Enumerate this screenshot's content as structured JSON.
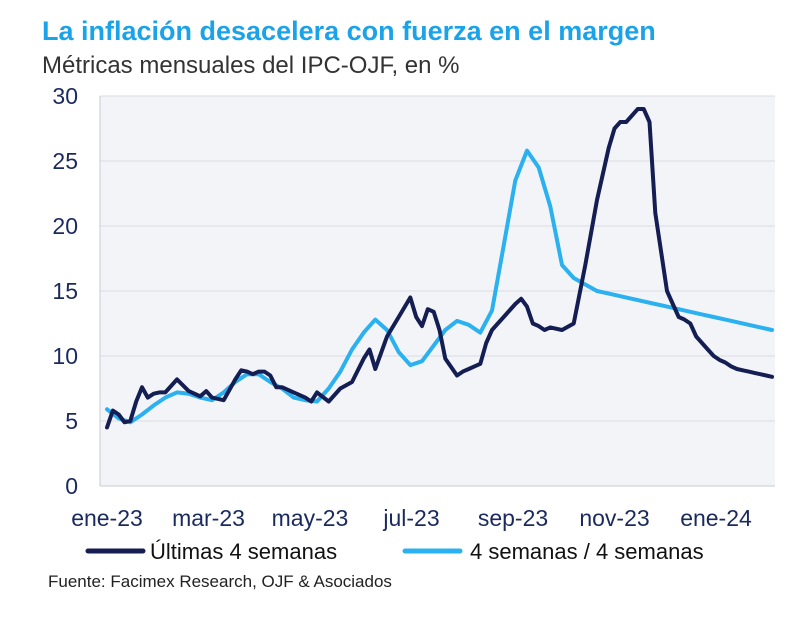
{
  "header": {
    "title": "La inflación desacelera con fuerza en el margen",
    "subtitle": "Métricas mensuales del IPC-OJF, en %"
  },
  "footer": {
    "source": "Fuente: Facimex Research, OJF & Asociados"
  },
  "colors": {
    "series1": "#141e52",
    "series2": "#2bb0f0",
    "title": "#1aa3e8",
    "plot_bg": "#f3f4f8"
  },
  "chart_data": {
    "type": "line",
    "title": "La inflación desacelera con fuerza en el margen",
    "subtitle": "Métricas mensuales del IPC-OJF, en %",
    "xlabel": "",
    "ylabel": "",
    "ylim": [
      0,
      30
    ],
    "xlim": [
      0,
      57
    ],
    "y_ticks": [
      "0",
      "5",
      "10",
      "15",
      "20",
      "25",
      "30"
    ],
    "y_tick_values": [
      0,
      5,
      10,
      15,
      20,
      25,
      30
    ],
    "x_ticks": [
      "ene-23",
      "mar-23",
      "may-23",
      "jul-23",
      "sep-23",
      "nov-23",
      "ene-24"
    ],
    "x_tick_values": [
      0,
      8.7,
      17.4,
      26.1,
      34.8,
      43.5,
      52.2
    ],
    "grid": "horizontal",
    "legend_position": "bottom",
    "x_unit": "weeks since start of ene-23",
    "series": [
      {
        "name": "Últimas 4 semanas",
        "x": [
          0,
          0.5,
          1,
          1.5,
          2,
          2.5,
          3,
          3.5,
          4,
          4.5,
          5,
          6,
          7,
          8,
          8.5,
          9,
          10,
          11,
          11.5,
          12,
          12.5,
          13,
          13.5,
          14,
          14.5,
          15,
          16,
          17,
          17.5,
          18,
          19,
          20,
          21,
          22,
          22.5,
          23,
          24,
          25,
          26,
          26.5,
          27,
          27.5,
          28,
          28.5,
          29,
          30,
          30.5,
          31,
          32,
          32.5,
          33,
          33.5,
          34,
          34.5,
          35,
          35.5,
          36,
          36.5,
          37,
          37.5,
          38,
          39,
          40,
          41,
          42,
          43,
          43.5,
          44,
          44.5,
          45,
          45.5,
          46,
          46.5,
          47,
          48,
          48.5,
          49,
          49.5,
          50,
          50.5,
          51,
          51.5,
          52,
          52.5,
          53,
          53.5,
          54,
          54.5,
          55,
          55.5,
          56,
          56.5,
          57
        ],
        "values": [
          4.5,
          5.8,
          5.5,
          4.9,
          5.0,
          6.5,
          7.6,
          6.8,
          7.1,
          7.2,
          7.2,
          8.2,
          7.3,
          6.9,
          7.3,
          6.8,
          6.6,
          8.2,
          8.9,
          8.8,
          8.6,
          8.8,
          8.8,
          8.5,
          7.6,
          7.6,
          7.2,
          6.8,
          6.5,
          7.2,
          6.5,
          7.5,
          8.0,
          9.8,
          10.5,
          9.0,
          11.5,
          13.0,
          14.5,
          13.0,
          12.3,
          13.6,
          13.4,
          12.0,
          9.8,
          8.5,
          8.8,
          9.0,
          9.4,
          11.0,
          12.0,
          12.5,
          13.0,
          13.5,
          14.0,
          14.4,
          13.8,
          12.5,
          12.3,
          12.0,
          12.2,
          12.0,
          12.5,
          17.0,
          22.0,
          26.0,
          27.5,
          28.0,
          28.0,
          28.5,
          29.0,
          29.0,
          28.0,
          21.0,
          15.0,
          14.0,
          13.0,
          12.8,
          12.5,
          11.5,
          11.0,
          10.5,
          10.0,
          9.7,
          9.5,
          9.2,
          9.0,
          8.9,
          8.8,
          8.7,
          8.6,
          8.5,
          8.4
        ]
      },
      {
        "name": "4 semanas / 4 semanas",
        "x": [
          0,
          1,
          2,
          3,
          4,
          5,
          6,
          7,
          8,
          9,
          10,
          11,
          12,
          13,
          14,
          15,
          16,
          17,
          18,
          19,
          20,
          21,
          22,
          23,
          24,
          25,
          26,
          27,
          28,
          29,
          30,
          31,
          32,
          33,
          34,
          35,
          36,
          37,
          38,
          39,
          40,
          41,
          42,
          43,
          44,
          45,
          46,
          47,
          48,
          49,
          50,
          51,
          52,
          53,
          54,
          55,
          56,
          57
        ],
        "values": [
          5.9,
          5.2,
          4.9,
          5.5,
          6.2,
          6.8,
          7.2,
          7.1,
          6.8,
          6.6,
          7.2,
          8.0,
          8.6,
          8.6,
          8.0,
          7.5,
          6.8,
          6.6,
          6.5,
          7.5,
          8.8,
          10.5,
          11.8,
          12.8,
          12.0,
          10.3,
          9.3,
          9.6,
          10.8,
          12.0,
          12.7,
          12.4,
          11.8,
          13.5,
          18.5,
          23.5,
          25.8,
          24.5,
          21.5,
          17.0,
          16.0,
          15.5,
          15.0,
          14.8,
          14.6,
          14.4,
          14.2,
          14.0,
          13.8,
          13.6,
          13.4,
          13.2,
          13.0,
          12.8,
          12.6,
          12.4,
          12.2,
          12.0
        ]
      }
    ]
  }
}
